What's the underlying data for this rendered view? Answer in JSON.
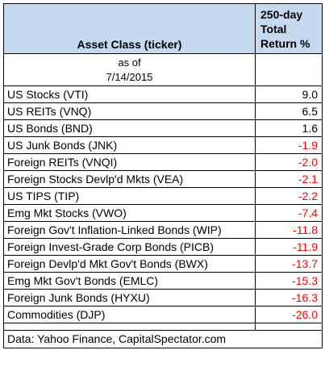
{
  "header": {
    "asset_col": "Asset Class (ticker)",
    "return_col": "250-day Total Return %"
  },
  "as_of": {
    "label": "as of",
    "date": "7/14/2015"
  },
  "rows": [
    {
      "asset": "US Stocks (VTI)",
      "value": "9.0",
      "negative": false
    },
    {
      "asset": "US REITs (VNQ)",
      "value": "6.5",
      "negative": false
    },
    {
      "asset": "US Bonds (BND)",
      "value": "1.6",
      "negative": false
    },
    {
      "asset": "US Junk Bonds (JNK)",
      "value": "-1.9",
      "negative": true
    },
    {
      "asset": "Foreign REITs (VNQI)",
      "value": "-2.0",
      "negative": true
    },
    {
      "asset": "Foreign Stocks Devlp'd Mkts (VEA)",
      "value": "-2.1",
      "negative": true
    },
    {
      "asset": "US TIPS (TIP)",
      "value": "-2.2",
      "negative": true
    },
    {
      "asset": "Emg Mkt Stocks (VWO)",
      "value": "-7.4",
      "negative": true
    },
    {
      "asset": "Foreign Gov't Inflation-Linked Bonds (WIP)",
      "value": "-11.8",
      "negative": true
    },
    {
      "asset": "Foreign Invest-Grade Corp Bonds (PICB)",
      "value": "-11.9",
      "negative": true
    },
    {
      "asset": "Foreign Devlp'd Mkt Gov't Bonds (BWX)",
      "value": "-13.7",
      "negative": true
    },
    {
      "asset": "Emg Mkt Gov't Bonds (EMLC)",
      "value": "-15.3",
      "negative": true
    },
    {
      "asset": "Foreign Junk Bonds (HYXU)",
      "value": "-16.3",
      "negative": true
    },
    {
      "asset": "Commodities (DJP)",
      "value": "-26.0",
      "negative": true
    }
  ],
  "footer": "Data: Yahoo Finance, CapitalSpectator.com",
  "colors": {
    "header_bg": "#c5d9f1",
    "negative": "#ff0000",
    "positive": "#000000"
  }
}
